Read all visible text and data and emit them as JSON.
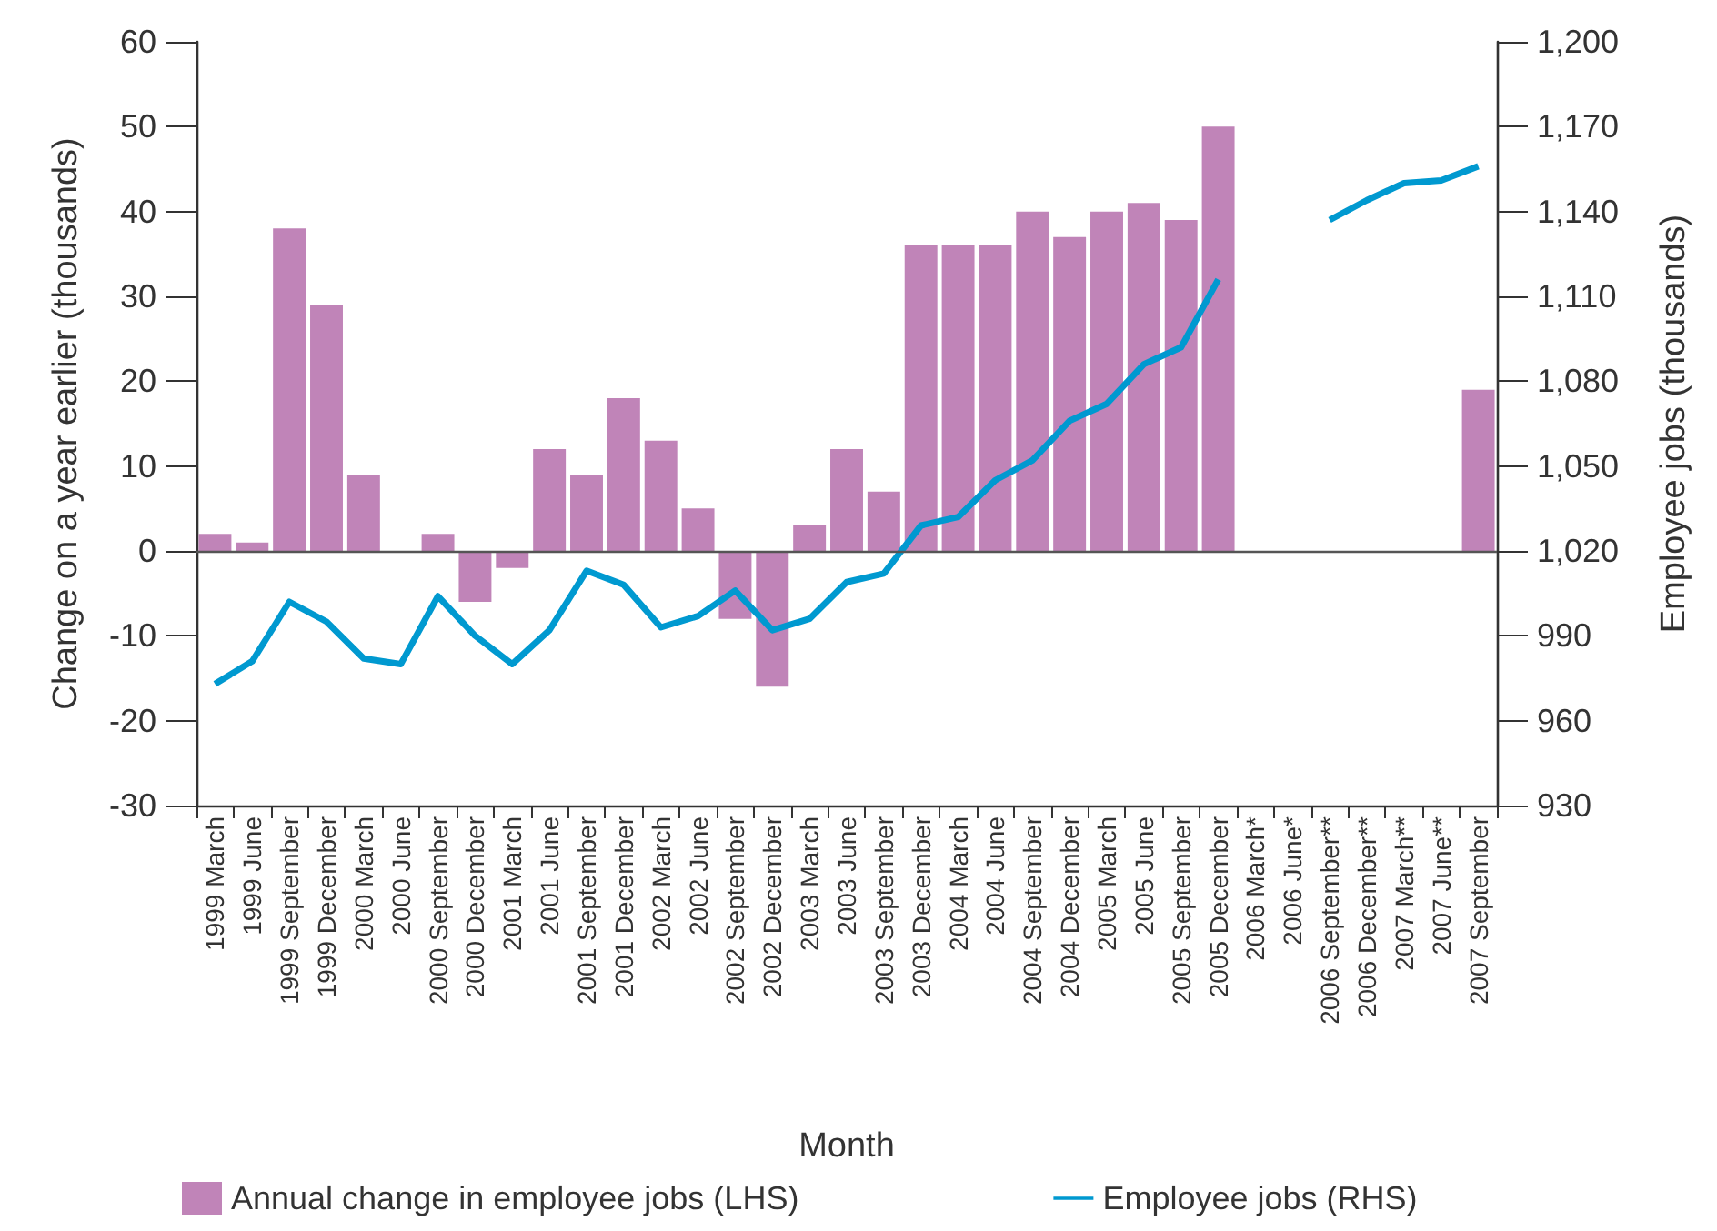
{
  "chart_data": {
    "type": "bar",
    "xlabel": "Month",
    "ylabel": "Change on a year earlier (thousands)",
    "y2label": "Employee jobs (thousands)",
    "categories": [
      "1999 March",
      "1999 June",
      "1999 September",
      "1999 December",
      "2000 March",
      "2000 June",
      "2000 September",
      "2000 December",
      "2001 March",
      "2001 June",
      "2001 September",
      "2001 December",
      "2002 March",
      "2002 June",
      "2002 September",
      "2002 December",
      "2003 March",
      "2003 June",
      "2003 September",
      "2003 December",
      "2004 March",
      "2004 June",
      "2004 September",
      "2004 December",
      "2005 March",
      "2005 June",
      "2005 September",
      "2005 December",
      "2006 March*",
      "2006 June*",
      "2006 September**",
      "2006 December**",
      "2007 March**",
      "2007 June**",
      "2007 September"
    ],
    "series": [
      {
        "name": "Annual change in employee jobs (LHS)",
        "color": "#c084b8",
        "values": [
          2,
          1,
          38,
          29,
          9,
          0,
          2,
          -6,
          -2,
          12,
          9,
          18,
          13,
          5,
          -8,
          -16,
          3,
          12,
          7,
          36,
          36,
          36,
          40,
          37,
          40,
          41,
          39,
          50,
          null,
          null,
          null,
          null,
          null,
          null,
          19
        ]
      },
      {
        "name": "Employee jobs (RHS)",
        "type": "line",
        "axis": "y2",
        "color": "#0099d0",
        "values": [
          973,
          981,
          1002,
          995,
          982,
          980,
          1004,
          990,
          980,
          992,
          1013,
          1008,
          993,
          997,
          1006,
          992,
          996,
          1009,
          1012,
          1029,
          1032,
          1045,
          1052,
          1066,
          1072,
          1086,
          1092,
          1116,
          null,
          null,
          1137,
          1144,
          1150,
          1151,
          1156
        ]
      }
    ],
    "ylim": [
      -30,
      60
    ],
    "yticks": [
      -30,
      -20,
      -10,
      0,
      10,
      20,
      30,
      40,
      50,
      60
    ],
    "y2lim": [
      930,
      1200
    ],
    "y2ticks": [
      930,
      960,
      990,
      {
        "value": 1020,
        "label": "1,020"
      },
      {
        "value": 1050,
        "label": "1,050"
      },
      {
        "value": 1080,
        "label": "1,080"
      },
      {
        "value": 1110,
        "label": "1,110"
      },
      {
        "value": 1140,
        "label": "1,140"
      },
      {
        "value": 1170,
        "label": "1,170"
      },
      {
        "value": 1200,
        "label": "1,200"
      }
    ],
    "ref_lines": [
      {
        "axis": "y",
        "value": 0,
        "color": "#555555"
      }
    ],
    "grid": false,
    "legend": "bottom",
    "marker": "none",
    "line_style": "solid"
  }
}
